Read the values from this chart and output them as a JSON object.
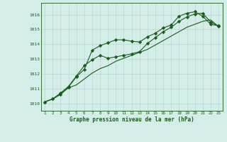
{
  "x": [
    1,
    2,
    3,
    4,
    5,
    6,
    7,
    8,
    9,
    10,
    11,
    12,
    13,
    14,
    15,
    16,
    17,
    18,
    19,
    20,
    21,
    22,
    23
  ],
  "line1": [
    1010.1,
    1010.3,
    1010.6,
    1011.1,
    1011.8,
    1012.3,
    1013.6,
    1013.9,
    1014.1,
    1014.3,
    1014.3,
    1014.2,
    1014.15,
    1014.5,
    1014.75,
    1015.1,
    1015.3,
    1015.9,
    1016.1,
    1016.2,
    1015.9,
    1015.35,
    1015.25
  ],
  "line2": [
    1010.1,
    1010.3,
    1010.7,
    1011.15,
    1011.85,
    1012.55,
    1012.95,
    1013.25,
    1013.05,
    1013.15,
    1013.25,
    1013.35,
    1013.5,
    1014.05,
    1014.45,
    1014.85,
    1015.15,
    1015.55,
    1015.85,
    1016.05,
    1016.1,
    1015.5,
    1015.2
  ],
  "line3": [
    1010.1,
    1010.3,
    1010.65,
    1011.05,
    1011.25,
    1011.65,
    1012.05,
    1012.35,
    1012.55,
    1012.85,
    1013.05,
    1013.25,
    1013.45,
    1013.65,
    1013.95,
    1014.25,
    1014.55,
    1014.85,
    1015.15,
    1015.35,
    1015.55,
    1015.65,
    1015.2
  ],
  "bg_color": "#d4ede8",
  "grid_color": "#b8d8d0",
  "line_color": "#1a5c1a",
  "xlabel": "Graphe pression niveau de la mer (hPa)",
  "ylim": [
    1009.5,
    1016.8
  ],
  "yticks": [
    1010,
    1011,
    1012,
    1013,
    1014,
    1015,
    1016
  ],
  "xticks": [
    1,
    2,
    3,
    4,
    5,
    6,
    7,
    8,
    9,
    10,
    11,
    12,
    13,
    14,
    15,
    16,
    17,
    18,
    19,
    20,
    21,
    22,
    23
  ]
}
